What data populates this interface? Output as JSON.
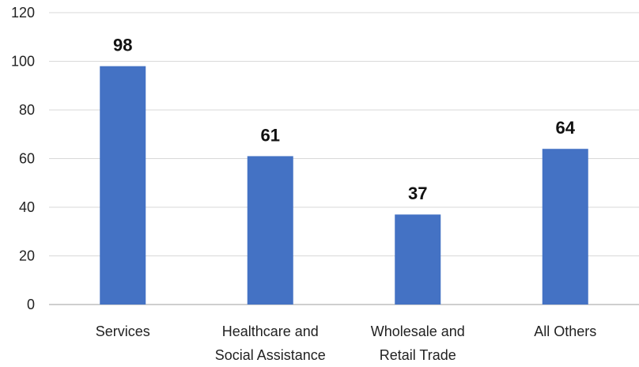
{
  "chart_data": {
    "type": "bar",
    "categories": [
      [
        "Services"
      ],
      [
        "Healthcare and",
        "Social Assistance"
      ],
      [
        "Wholesale and",
        "Retail Trade"
      ],
      [
        "All Others"
      ]
    ],
    "values": [
      98,
      61,
      37,
      64
    ],
    "ylim": [
      0,
      120
    ],
    "yticks": [
      0,
      20,
      40,
      60,
      80,
      100,
      120
    ],
    "grid": true,
    "bar_color": "#4472C4",
    "data_labels": [
      "98",
      "61",
      "37",
      "64"
    ],
    "title": "",
    "xlabel": "",
    "ylabel": ""
  }
}
